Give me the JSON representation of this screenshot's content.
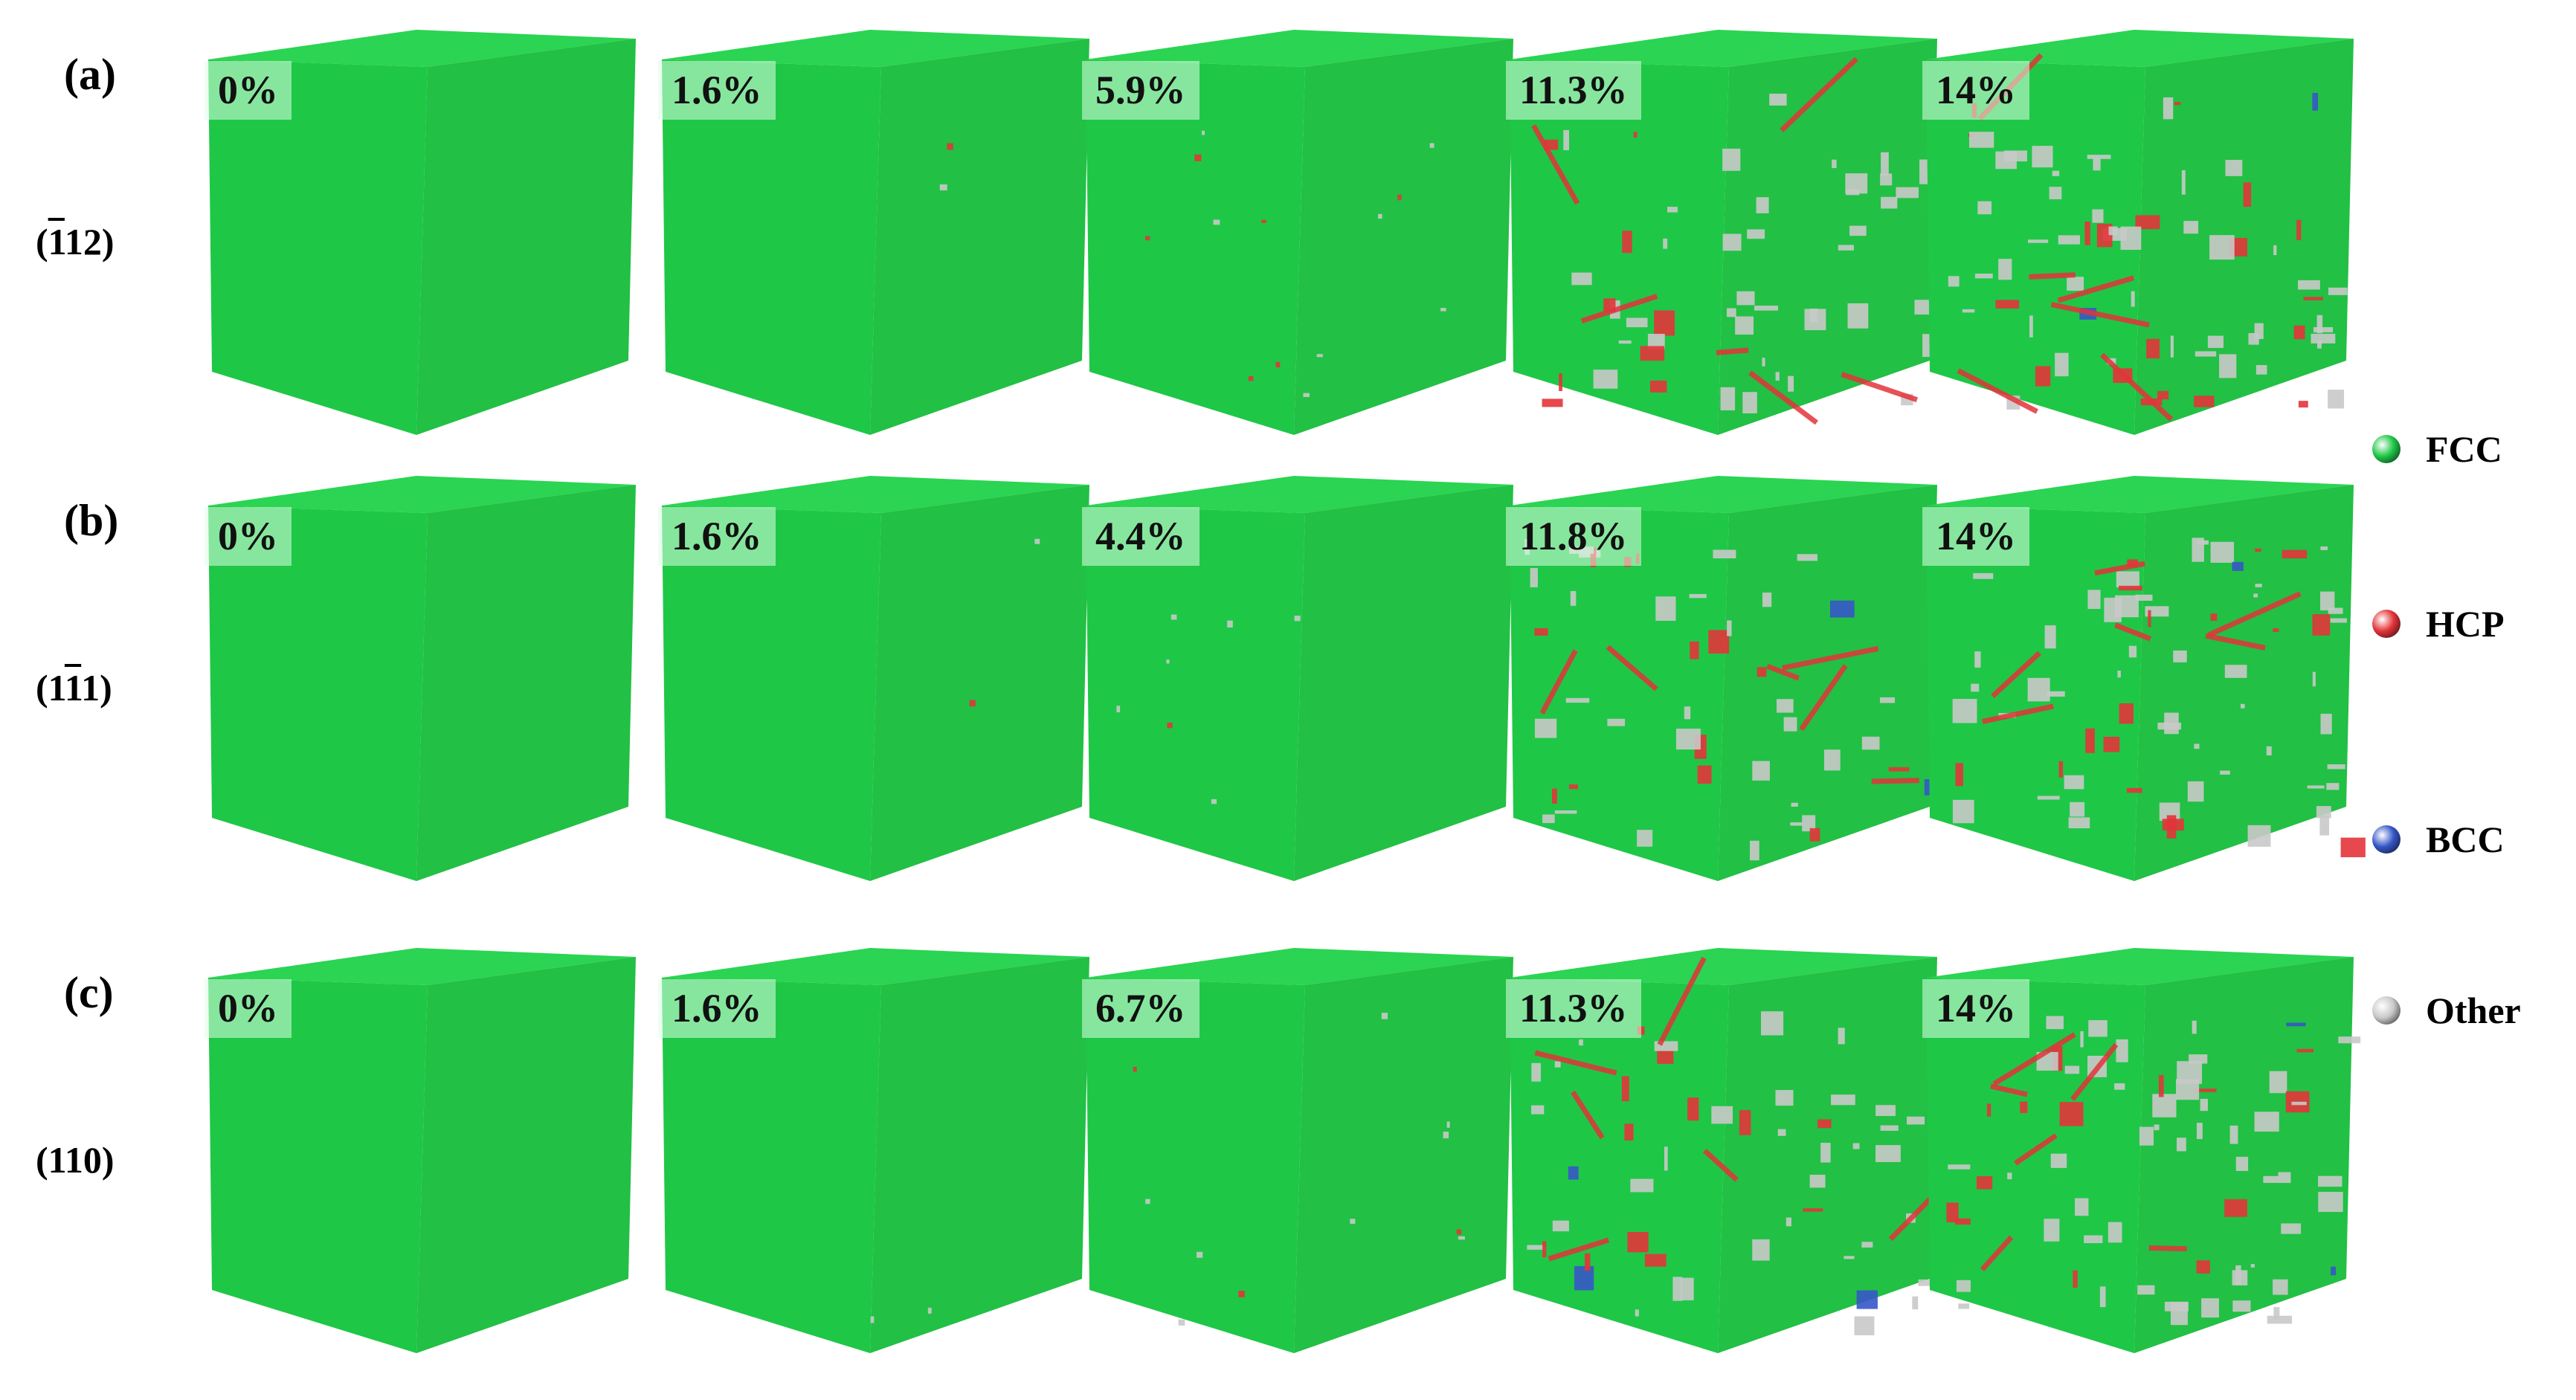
{
  "colors": {
    "fcc": "#1fc747",
    "hcp": "#e3343a",
    "bcc": "#3657c8",
    "other": "#c9c9c9"
  },
  "rows": [
    {
      "label": "(a)",
      "plane_pre": "(",
      "plane_bar": "¯1",
      "plane_post": "12)",
      "plane_parts": [
        {
          "t": "(",
          "bar": false
        },
        {
          "t": "1",
          "bar": true
        },
        {
          "t": "12)",
          "bar": false
        }
      ],
      "strains": [
        "0%",
        "1.6%",
        "5.9%",
        "11.3%",
        "14%"
      ]
    },
    {
      "label": "(b)",
      "plane_parts": [
        {
          "t": "(1",
          "bar": false
        },
        {
          "t": "1",
          "bar": true
        },
        {
          "t": "1)",
          "bar": false
        }
      ],
      "strains": [
        "0%",
        "1.6%",
        "4.4%",
        "11.8%",
        "14%"
      ]
    },
    {
      "label": "(c)",
      "plane_parts": [
        {
          "t": "(110)",
          "bar": false
        }
      ],
      "strains": [
        "0%",
        "1.6%",
        "6.7%",
        "11.3%",
        "14%"
      ]
    }
  ],
  "legend": [
    {
      "name": "FCC",
      "color": "#1fc747",
      "icon": "green-sphere"
    },
    {
      "name": "HCP",
      "color": "#e3343a",
      "icon": "red-sphere"
    },
    {
      "name": "BCC",
      "color": "#3657c8",
      "icon": "blue-sphere"
    },
    {
      "name": "Other",
      "color": "#c9c9c9",
      "icon": "grey-sphere"
    }
  ],
  "defect_level": [
    [
      0,
      0.01,
      0.06,
      0.22,
      0.3
    ],
    [
      0,
      0.01,
      0.03,
      0.2,
      0.3
    ],
    [
      0,
      0.01,
      0.05,
      0.22,
      0.3
    ]
  ]
}
